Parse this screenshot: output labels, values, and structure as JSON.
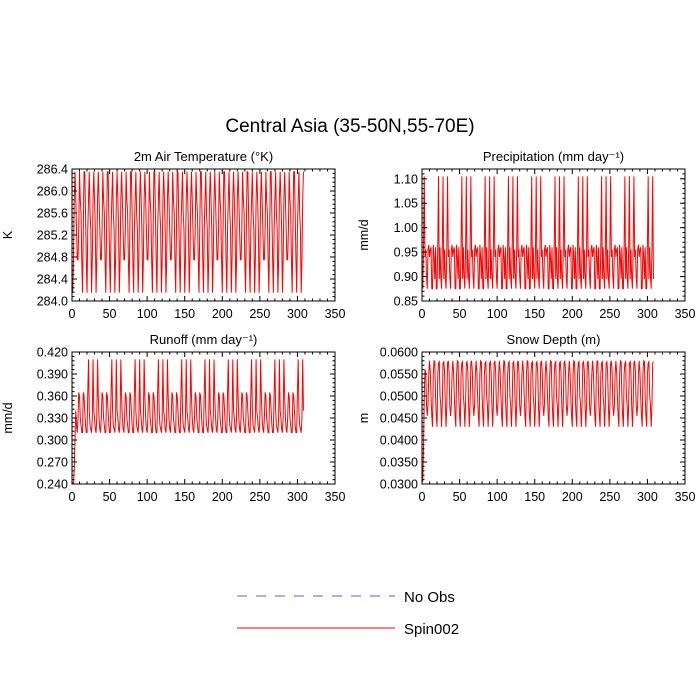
{
  "figure": {
    "title": "Central Asia (35-50N,55-70E)"
  },
  "legend": {
    "entries": [
      {
        "label": "No Obs",
        "color": "#5a5aff",
        "dash": true
      },
      {
        "label": "Spin002",
        "color": "#ff0000",
        "dash": false
      }
    ]
  },
  "chart_data": [
    {
      "type": "line",
      "title": "2m Air Temperature (°K)",
      "xlabel": "",
      "ylabel": "K",
      "xlim": [
        0,
        350
      ],
      "ylim": [
        284.0,
        286.4
      ],
      "xticks": [
        "0",
        "50",
        "100",
        "150",
        "200",
        "250",
        "300",
        "350"
      ],
      "yticks": [
        "284.0",
        "284.4",
        "284.8",
        "285.2",
        "285.6",
        "286.0",
        "286.4"
      ],
      "series": [
        {
          "name": "Spin002",
          "color": "#ff0000",
          "pattern": {
            "type": "annual_cycle",
            "n_months": 308,
            "period_months": 6.2,
            "monthly": [
              284.15,
              284.75,
              285.3,
              285.85,
              286.35,
              286.35,
              285.85,
              285.6,
              285.3,
              284.75
            ],
            "initial": []
          }
        }
      ]
    },
    {
      "type": "line",
      "title": "Precipitation (mm day⁻¹)",
      "xlabel": "",
      "ylabel": "mm/d",
      "xlim": [
        0,
        350
      ],
      "ylim": [
        0.85,
        1.12
      ],
      "xticks": [
        "0",
        "50",
        "100",
        "150",
        "200",
        "250",
        "300",
        "350"
      ],
      "yticks": [
        "0.85",
        "0.90",
        "0.95",
        "1.00",
        "1.05",
        "1.10"
      ],
      "series": [
        {
          "name": "Spin002",
          "color": "#ff0000",
          "pattern": {
            "type": "annual_cycle",
            "n_months": 308,
            "period_months": 6.2,
            "monthly": [
              0.875,
              0.955,
              0.965,
              1.105,
              0.94,
              0.895,
              0.955,
              0.96,
              0.9,
              0.875
            ],
            "initial": []
          }
        }
      ]
    },
    {
      "type": "line",
      "title": "Runoff (mm day⁻¹)",
      "xlabel": "",
      "ylabel": "mm/d",
      "xlim": [
        0,
        350
      ],
      "ylim": [
        0.24,
        0.42
      ],
      "xticks": [
        "0",
        "50",
        "100",
        "150",
        "200",
        "250",
        "300",
        "350"
      ],
      "yticks": [
        "0.240",
        "0.270",
        "0.300",
        "0.330",
        "0.360",
        "0.390",
        "0.420"
      ],
      "series": [
        {
          "name": "Spin002",
          "color": "#ff0000",
          "pattern": {
            "type": "annual_cycle",
            "n_months": 308,
            "period_months": 6.2,
            "monthly": [
              0.31,
              0.33,
              0.365,
              0.41,
              0.36,
              0.34,
              0.33,
              0.32,
              0.315,
              0.31
            ],
            "initial": [
              0.243,
              0.24,
              0.26,
              0.3,
              0.34,
              0.32
            ]
          }
        }
      ]
    },
    {
      "type": "line",
      "title": "Snow Depth (m)",
      "xlabel": "",
      "ylabel": "m",
      "xlim": [
        0,
        350
      ],
      "ylim": [
        0.03,
        0.06
      ],
      "xticks": [
        "0",
        "50",
        "100",
        "150",
        "200",
        "250",
        "300",
        "350"
      ],
      "yticks": [
        "0.0300",
        "0.0350",
        "0.0400",
        "0.0450",
        "0.0500",
        "0.0550",
        "0.0600"
      ],
      "series": [
        {
          "name": "Spin002",
          "color": "#ff0000",
          "pattern": {
            "type": "annual_cycle",
            "n_months": 308,
            "period_months": 6.2,
            "monthly": [
              0.043,
              0.048,
              0.055,
              0.0575,
              0.058,
              0.0578,
              0.0555,
              0.05,
              0.048,
              0.0455
            ],
            "initial": [
              0.0305,
              0.038,
              0.05,
              0.056
            ]
          }
        }
      ]
    }
  ]
}
